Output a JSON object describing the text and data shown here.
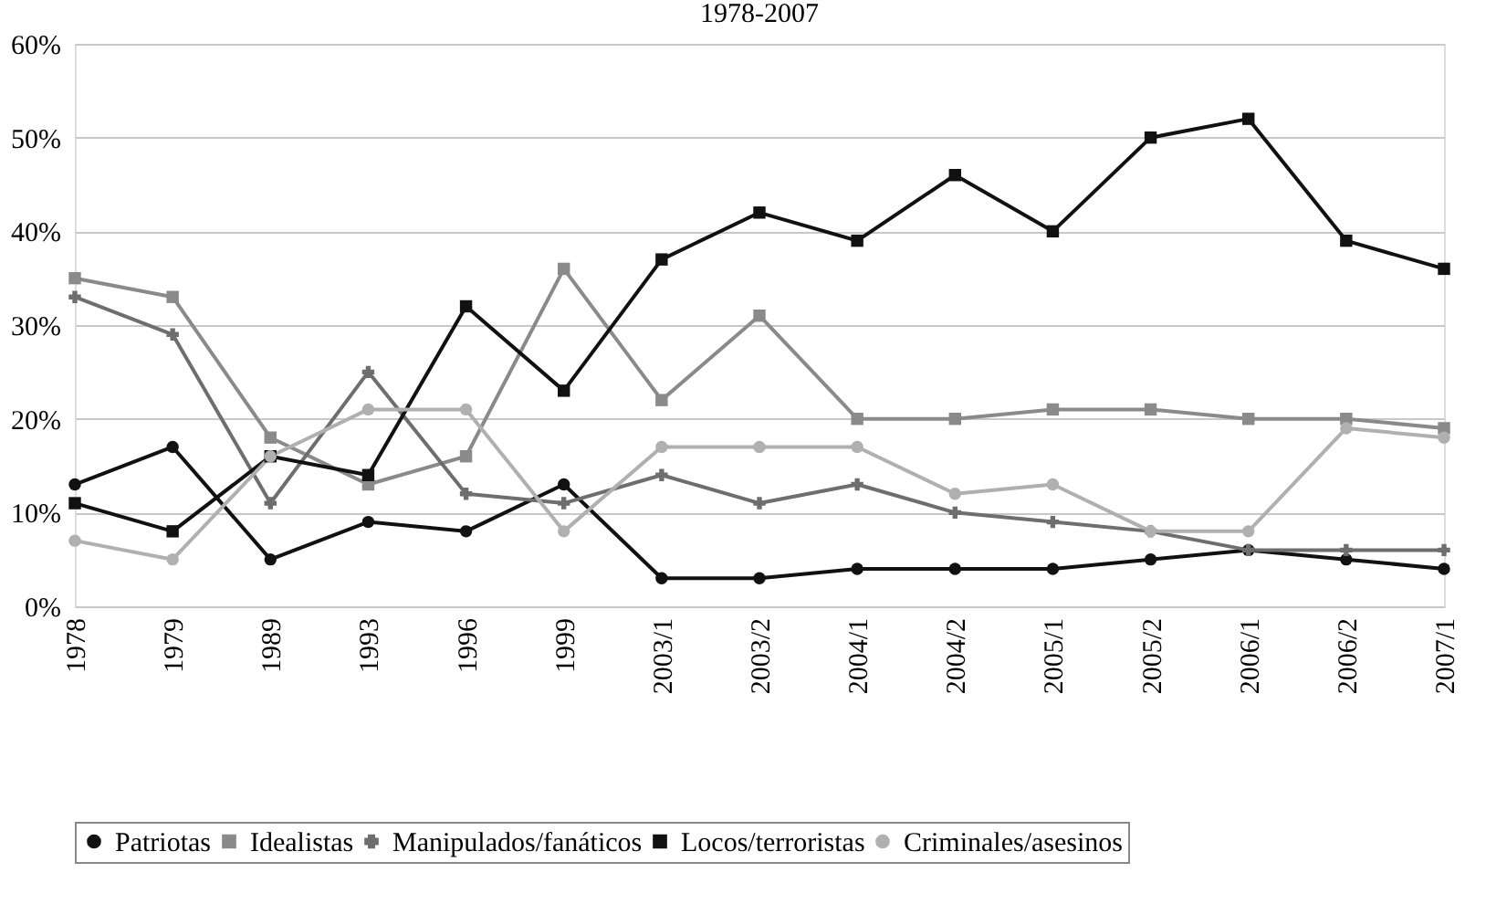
{
  "chart_data": {
    "type": "line",
    "title": "1978-2007",
    "categories": [
      "1978",
      "1979",
      "1989",
      "1993",
      "1996",
      "1999",
      "2003/1",
      "2003/2",
      "2004/1",
      "2004/2",
      "2005/1",
      "2005/2",
      "2006/1",
      "2006/2",
      "2007/1"
    ],
    "series": [
      {
        "name": "Patriotas",
        "color": "#111111",
        "marker": "circle",
        "values": [
          13,
          17,
          5,
          9,
          8,
          13,
          3,
          3,
          4,
          4,
          4,
          5,
          6,
          5,
          4
        ]
      },
      {
        "name": "Idealistas",
        "color": "#8a8a8a",
        "marker": "square",
        "values": [
          35,
          33,
          18,
          13,
          16,
          36,
          22,
          31,
          20,
          20,
          21,
          21,
          20,
          20,
          19
        ]
      },
      {
        "name": "Manipulados/fanáticos",
        "color": "#6e6e6e",
        "marker": "cross",
        "values": [
          33,
          29,
          11,
          25,
          12,
          11,
          14,
          11,
          13,
          10,
          9,
          8,
          6,
          6,
          6
        ]
      },
      {
        "name": "Locos/terroristas",
        "color": "#111111",
        "marker": "square",
        "values": [
          11,
          8,
          16,
          14,
          32,
          23,
          37,
          42,
          39,
          46,
          40,
          50,
          52,
          39,
          36
        ]
      },
      {
        "name": "Criminales/asesinos",
        "color": "#b0b0b0",
        "marker": "circle",
        "values": [
          7,
          5,
          16,
          21,
          21,
          8,
          17,
          17,
          17,
          12,
          13,
          8,
          8,
          19,
          18
        ]
      }
    ],
    "ylim": [
      0,
      60
    ],
    "yticks": [
      {
        "value": 0,
        "label": "0%"
      },
      {
        "value": 10,
        "label": "10%"
      },
      {
        "value": 20,
        "label": "20%"
      },
      {
        "value": 30,
        "label": "30%"
      },
      {
        "value": 40,
        "label": "40%"
      },
      {
        "value": 50,
        "label": "50%"
      },
      {
        "value": 60,
        "label": "60%"
      }
    ],
    "grid": "y",
    "legend": "bottom",
    "line_style": "solid"
  }
}
